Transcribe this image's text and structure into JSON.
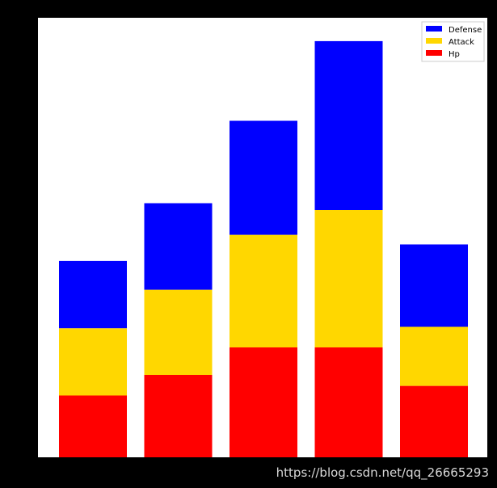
{
  "chart_data": {
    "type": "bar",
    "stacked": true,
    "categories": [
      "",
      "",
      "",
      "",
      ""
    ],
    "series": [
      {
        "name": "Hp",
        "color": "#ff0000",
        "values": [
          45,
          60,
          80,
          80,
          52
        ]
      },
      {
        "name": "Attack",
        "color": "#ffd700",
        "values": [
          49,
          62,
          82,
          100,
          43
        ]
      },
      {
        "name": "Defense",
        "color": "#0000ff",
        "values": [
          49,
          63,
          83,
          123,
          60
        ]
      }
    ],
    "legend_order": [
      "Defense",
      "Attack",
      "Hp"
    ],
    "legend_position": "top-right",
    "ylim": [
      0,
      320
    ],
    "grid": false,
    "background": "#ffffff"
  },
  "watermark": "https://blog.csdn.net/qq_26665293"
}
